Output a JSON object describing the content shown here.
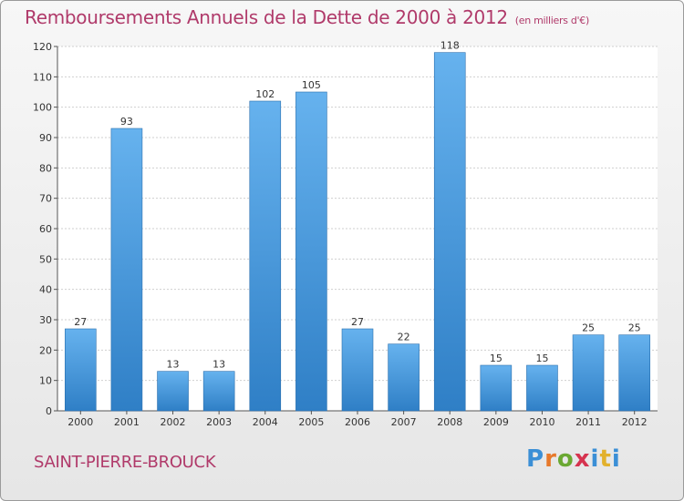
{
  "header": {
    "title": "Remboursements Annuels de la Dette de 2000 à 2012",
    "unit": "(en milliers d'€)"
  },
  "footer": {
    "commune": "SAINT-PIERRE-BROUCK",
    "logo_text": "Proxiti"
  },
  "colors": {
    "bar": "#4e9fe0",
    "bar_light": "#66b2ee",
    "bar_dark": "#2f7fc6",
    "title": "#b03a6a",
    "grid": "#cfcfcf"
  },
  "chart_data": {
    "type": "bar",
    "title": "Remboursements Annuels de la Dette de 2000 à 2012",
    "subtitle": "(en milliers d'€)",
    "xlabel": "",
    "ylabel": "",
    "categories": [
      "2000",
      "2001",
      "2002",
      "2003",
      "2004",
      "2005",
      "2006",
      "2007",
      "2008",
      "2009",
      "2010",
      "2011",
      "2012"
    ],
    "values": [
      27,
      93,
      13,
      13,
      102,
      105,
      27,
      22,
      118,
      15,
      15,
      25,
      25
    ],
    "data_labels": [
      "27",
      "93",
      "13",
      "13",
      "102",
      "105",
      "27",
      "22",
      "118",
      "15",
      "15",
      "25",
      "25"
    ],
    "ylim": [
      0,
      120
    ],
    "yticks": [
      0,
      10,
      20,
      30,
      40,
      50,
      60,
      70,
      80,
      90,
      100,
      110,
      120
    ],
    "grid": true
  }
}
